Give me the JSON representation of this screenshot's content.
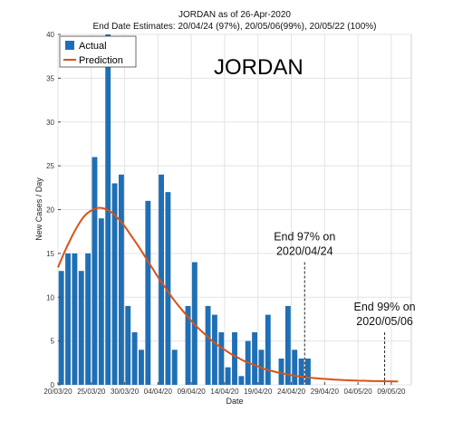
{
  "chart_data": {
    "type": "bar",
    "title": "JORDAN as of 26-Apr-2020",
    "subtitle": "End Date Estimates: 20/04/24 (97%), 20/05/06(99%), 20/05/22 (100%)",
    "country_label": "JORDAN",
    "xlabel": "Date",
    "ylabel": "New Cases / Day",
    "ylim": [
      0,
      40
    ],
    "xlim": [
      0,
      53
    ],
    "y_ticks": [
      0,
      5,
      10,
      15,
      20,
      25,
      30,
      35,
      40
    ],
    "x_ticks": [
      {
        "x": 0,
        "label": "20/03/20"
      },
      {
        "x": 5,
        "label": "25/03/20"
      },
      {
        "x": 10,
        "label": "30/03/20"
      },
      {
        "x": 15,
        "label": "04/04/20"
      },
      {
        "x": 20,
        "label": "09/04/20"
      },
      {
        "x": 25,
        "label": "14/04/20"
      },
      {
        "x": 30,
        "label": "19/04/20"
      },
      {
        "x": 35,
        "label": "24/04/20"
      },
      {
        "x": 40,
        "label": "29/04/20"
      },
      {
        "x": 45,
        "label": "04/05/20"
      },
      {
        "x": 50,
        "label": "09/05/20"
      }
    ],
    "grid": true,
    "legend_position": "top-left",
    "series": [
      {
        "name": "Actual",
        "kind": "bar",
        "color": "#1f6fb5",
        "x": [
          0,
          1,
          2,
          3,
          4,
          5,
          6,
          7,
          8,
          9,
          10,
          11,
          12,
          13,
          14,
          15,
          16,
          17,
          18,
          19,
          20,
          21,
          22,
          23,
          24,
          25,
          26,
          27,
          28,
          29,
          30,
          31,
          32,
          33,
          34,
          35,
          36,
          37
        ],
        "values": [
          13,
          15,
          15,
          13,
          15,
          26,
          19,
          40,
          23,
          24,
          9,
          6,
          4,
          21,
          0,
          24,
          22,
          4,
          0,
          9,
          14,
          0,
          9,
          8,
          6,
          2,
          6,
          1,
          5,
          6,
          4,
          8,
          0,
          3,
          9,
          4,
          3,
          3
        ]
      },
      {
        "name": "Prediction",
        "kind": "line",
        "color": "#d95319",
        "x": [
          0,
          1,
          2,
          3,
          4,
          5,
          6,
          7,
          8,
          9,
          10,
          11,
          12,
          13,
          14,
          15,
          16,
          17,
          18,
          19,
          20,
          21,
          22,
          23,
          24,
          25,
          26,
          27,
          28,
          29,
          30,
          31,
          32,
          33,
          34,
          35,
          36,
          37,
          38,
          39,
          40,
          41,
          42,
          43,
          44,
          45,
          46,
          47,
          48,
          49,
          50,
          51
        ],
        "values": [
          13.4,
          15.2,
          16.8,
          18.2,
          19.3,
          19.9,
          20.2,
          20.1,
          19.7,
          19.0,
          18.1,
          17.0,
          15.9,
          14.7,
          13.5,
          12.3,
          11.2,
          10.1,
          9.1,
          8.2,
          7.3,
          6.5,
          5.8,
          5.1,
          4.5,
          4.0,
          3.5,
          3.1,
          2.7,
          2.4,
          2.1,
          1.8,
          1.6,
          1.4,
          1.25,
          1.1,
          0.98,
          0.88,
          0.8,
          0.73,
          0.67,
          0.62,
          0.58,
          0.54,
          0.51,
          0.48,
          0.46,
          0.44,
          0.42,
          0.41,
          0.4,
          0.39
        ]
      }
    ],
    "annotations": [
      {
        "x": 37,
        "line_top": 14,
        "line1": "End 97% on",
        "line2": "2020/04/24"
      },
      {
        "x": 49,
        "line_top": 6,
        "line1": "End 99% on",
        "line2": "2020/05/06"
      }
    ]
  }
}
